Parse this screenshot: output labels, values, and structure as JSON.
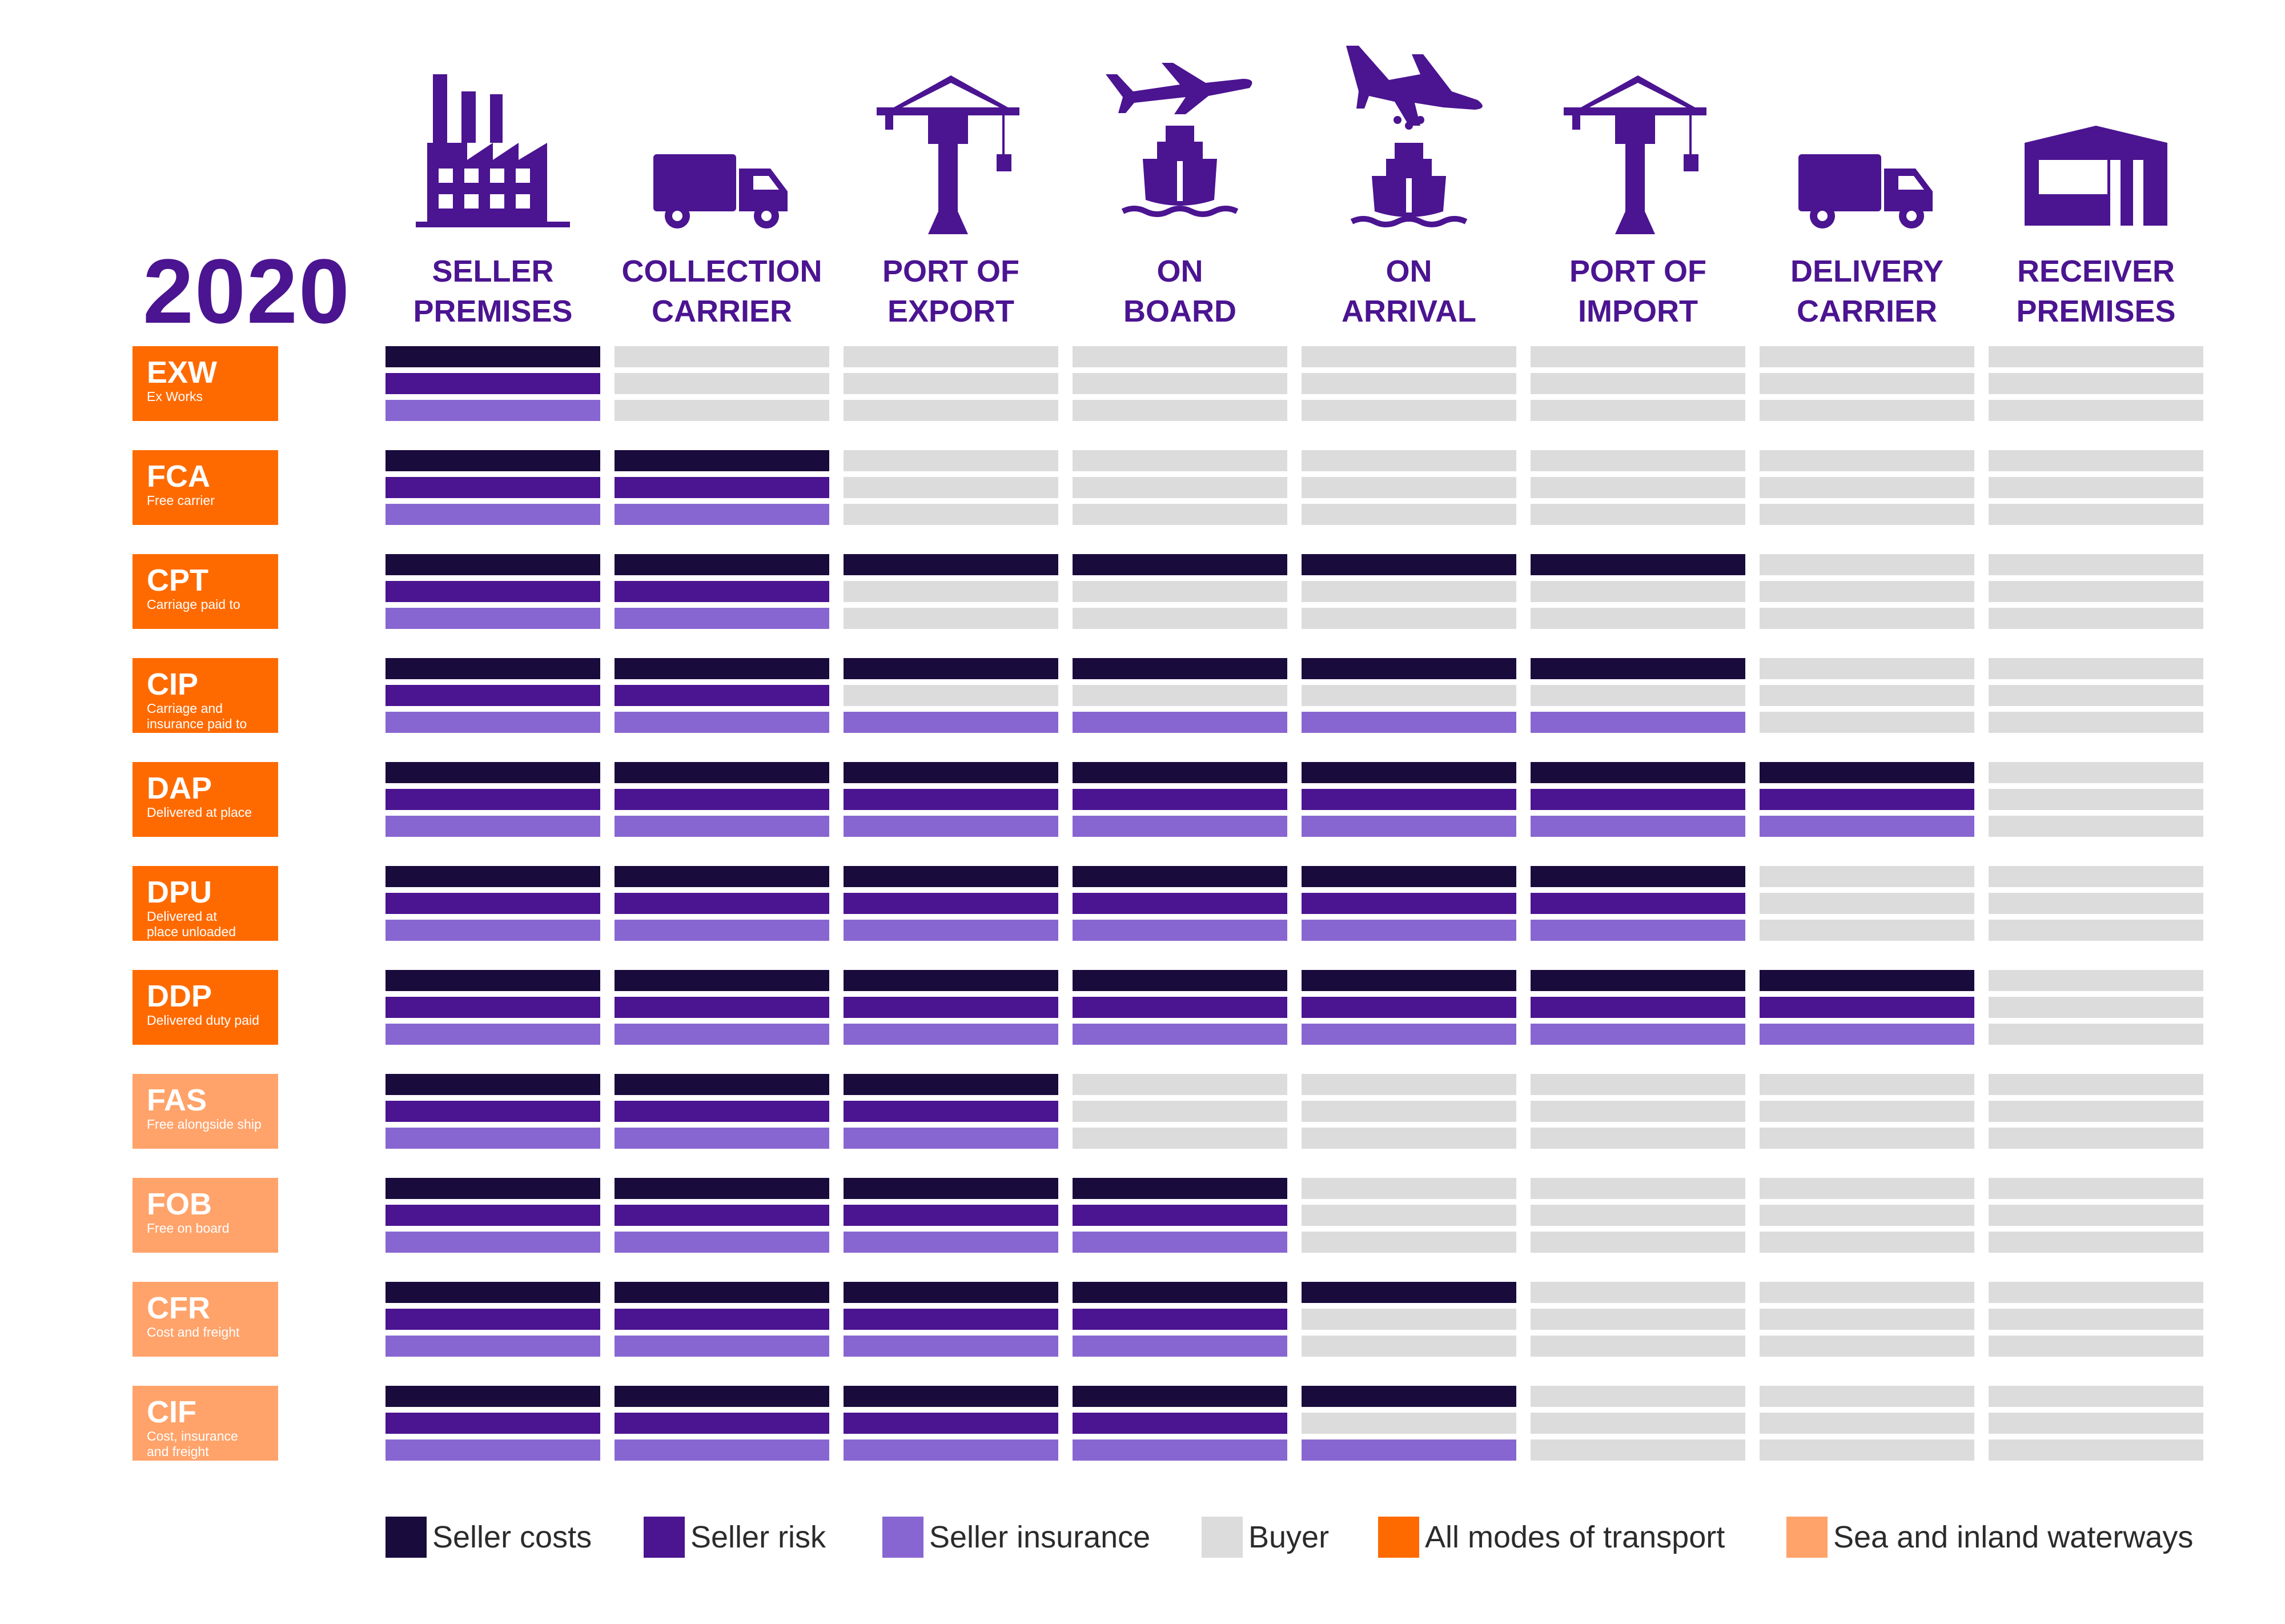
{
  "year": "2020",
  "colors": {
    "seller_costs": "#1a0b3d",
    "seller_risk": "#4b1491",
    "seller_insurance": "#8866d1",
    "buyer": "#dcdcdc",
    "all_modes": "#ff6a00",
    "sea": "#ffa36b",
    "heading": "#4b1491"
  },
  "stages": [
    {
      "line1": "SELLER",
      "line2": "PREMISES",
      "icon": "factory-icon"
    },
    {
      "line1": "COLLECTION",
      "line2": "CARRIER",
      "icon": "truck-icon"
    },
    {
      "line1": "PORT OF",
      "line2": "EXPORT",
      "icon": "crane-icon"
    },
    {
      "line1": "ON",
      "line2": "BOARD",
      "icon": "plane-ship-icon"
    },
    {
      "line1": "ON",
      "line2": "ARRIVAL",
      "icon": "plane-landing-ship-icon"
    },
    {
      "line1": "PORT OF",
      "line2": "IMPORT",
      "icon": "crane-icon"
    },
    {
      "line1": "DELIVERY",
      "line2": "CARRIER",
      "icon": "truck-icon"
    },
    {
      "line1": "RECEIVER",
      "line2": "PREMISES",
      "icon": "warehouse-icon"
    }
  ],
  "terms": [
    {
      "code": "EXW",
      "desc1": "Ex Works",
      "desc2": "",
      "mode": "all",
      "costs": 1,
      "risk": 1,
      "insurance": 1
    },
    {
      "code": "FCA",
      "desc1": "Free carrier",
      "desc2": "",
      "mode": "all",
      "costs": 2,
      "risk": 2,
      "insurance": 2
    },
    {
      "code": "CPT",
      "desc1": "Carriage paid to",
      "desc2": "",
      "mode": "all",
      "costs": 6,
      "risk": 2,
      "insurance": 2
    },
    {
      "code": "CIP",
      "desc1": "Carriage and",
      "desc2": "insurance paid to",
      "mode": "all",
      "costs": 6,
      "risk": 2,
      "insurance": 6
    },
    {
      "code": "DAP",
      "desc1": "Delivered at place",
      "desc2": "",
      "mode": "all",
      "costs": 7,
      "risk": 7,
      "insurance": 7
    },
    {
      "code": "DPU",
      "desc1": "Delivered at",
      "desc2": "place unloaded",
      "mode": "all",
      "costs": 6,
      "risk": 6,
      "insurance": 6
    },
    {
      "code": "DDP",
      "desc1": "Delivered duty paid",
      "desc2": "",
      "mode": "all",
      "costs": 7,
      "risk": 7,
      "insurance": 7
    },
    {
      "code": "FAS",
      "desc1": "Free alongside ship",
      "desc2": "",
      "mode": "sea",
      "costs": 3,
      "risk": 3,
      "insurance": 3
    },
    {
      "code": "FOB",
      "desc1": "Free on board",
      "desc2": "",
      "mode": "sea",
      "costs": 4,
      "risk": 4,
      "insurance": 4
    },
    {
      "code": "CFR",
      "desc1": "Cost and freight",
      "desc2": "",
      "mode": "sea",
      "costs": 5,
      "risk": 4,
      "insurance": 4
    },
    {
      "code": "CIF",
      "desc1": "Cost, insurance",
      "desc2": "and freight",
      "mode": "sea",
      "costs": 5,
      "risk": 4,
      "insurance": 5
    }
  ],
  "legend": [
    {
      "label": "Seller costs",
      "color_key": "seller_costs"
    },
    {
      "label": "Seller risk",
      "color_key": "seller_risk"
    },
    {
      "label": "Seller insurance",
      "color_key": "seller_insurance"
    },
    {
      "label": "Buyer",
      "color_key": "buyer"
    },
    {
      "label": "All modes of transport",
      "color_key": "all_modes"
    },
    {
      "label": "Sea and inland waterways",
      "color_key": "sea"
    }
  ]
}
